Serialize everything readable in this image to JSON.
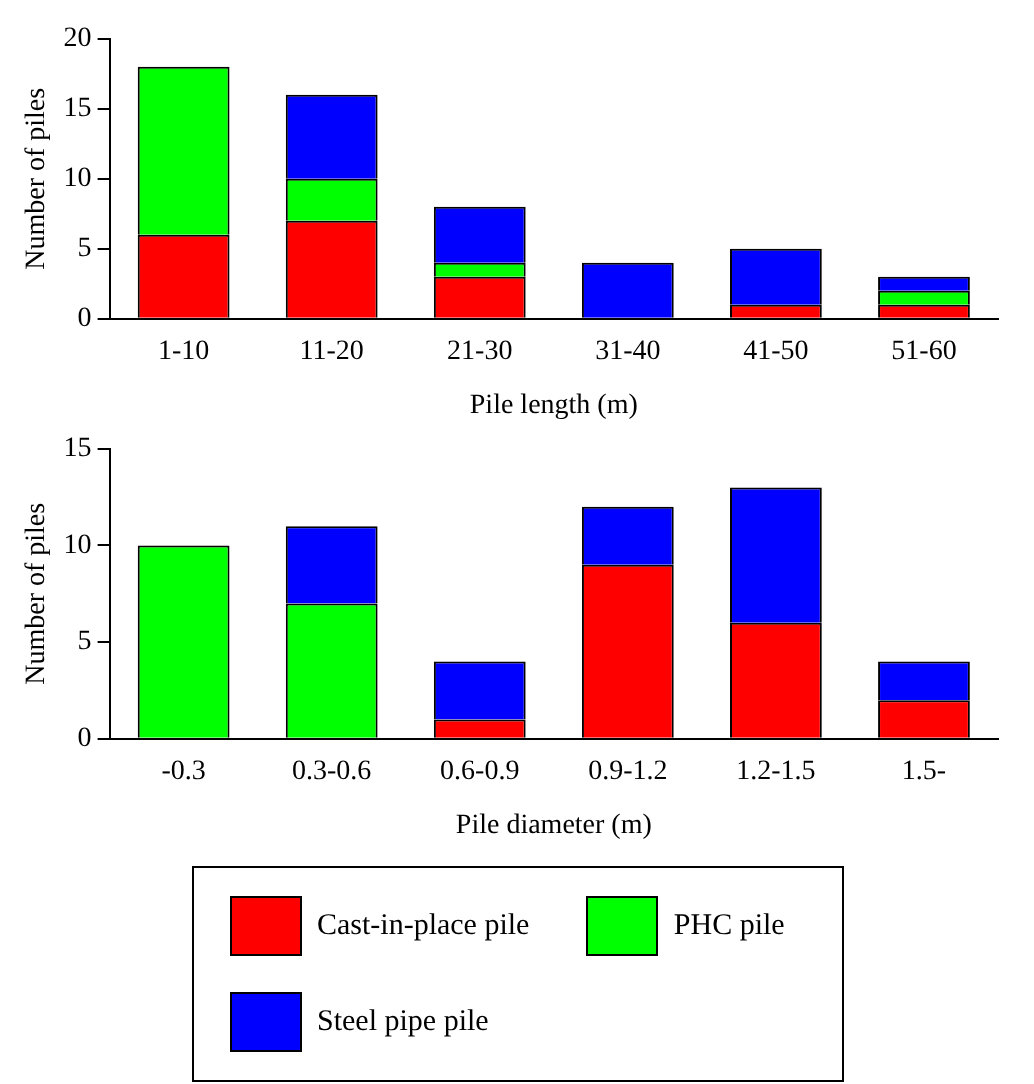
{
  "chart_data": [
    {
      "type": "bar",
      "stacked": true,
      "categories": [
        "1-10",
        "11-20",
        "21-30",
        "31-40",
        "41-50",
        "51-60"
      ],
      "xlabel": "Pile length (m)",
      "ylabel": "Number of piles",
      "ylim": [
        0,
        20
      ],
      "yticks": [
        0,
        5,
        10,
        15,
        20
      ],
      "grid": false,
      "legend": false,
      "series": [
        {
          "color": "#ff0000",
          "values": [
            6,
            7,
            3,
            0,
            1,
            1
          ]
        },
        {
          "color": "#00ff00",
          "values": [
            12,
            3,
            1,
            0,
            0,
            1
          ]
        },
        {
          "color": "#0000ff",
          "values": [
            0,
            6,
            4,
            4,
            4,
            1
          ]
        }
      ]
    },
    {
      "type": "bar",
      "stacked": true,
      "categories": [
        "-0.3",
        "0.3-0.6",
        "0.6-0.9",
        "0.9-1.2",
        "1.2-1.5",
        "1.5-"
      ],
      "xlabel": "Pile diameter (m)",
      "ylabel": "Number of piles",
      "ylim": [
        0,
        15
      ],
      "yticks": [
        0,
        5,
        10,
        15
      ],
      "grid": false,
      "legend": "bottom",
      "series": [
        {
          "name": "Cast-in-place pile",
          "color": "#ff0000",
          "values": [
            0,
            0,
            1,
            9,
            6,
            2
          ]
        },
        {
          "name": "PHC pile",
          "color": "#00ff00",
          "values": [
            10,
            7,
            0,
            0,
            0,
            0
          ]
        },
        {
          "name": "Steel pipe pile",
          "color": "#0000ff",
          "values": [
            0,
            4,
            3,
            3,
            7,
            2
          ]
        }
      ]
    }
  ]
}
